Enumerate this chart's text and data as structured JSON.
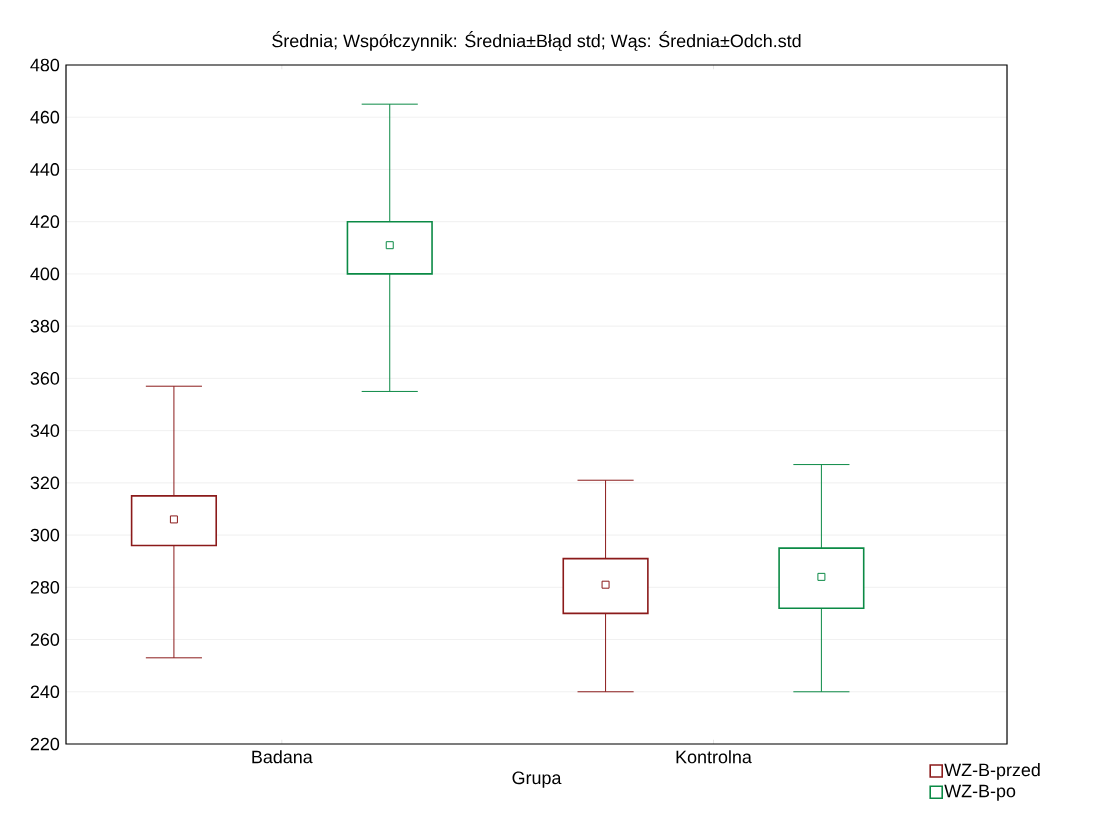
{
  "chart_data": {
    "type": "box",
    "title": "Średnia; Współczynnik: Średnia±Błąd std; Wąs: Średnia±Odch.std",
    "xlabel": "Grupa",
    "categories": [
      "Badana",
      "Kontrolna"
    ],
    "ylim": [
      220,
      480
    ],
    "yticks": [
      220,
      240,
      260,
      280,
      300,
      320,
      340,
      360,
      380,
      400,
      420,
      440,
      460,
      480
    ],
    "grid": "y",
    "legend": "bottom right",
    "marker": "square",
    "series": [
      {
        "name": "WZ-B-przed",
        "color": "#8b1a1a",
        "boxes": [
          {
            "low": 253,
            "q1": 296,
            "q3": 315,
            "high": 357,
            "mean": 306
          },
          {
            "low": 240,
            "q1": 270,
            "q3": 291,
            "high": 321,
            "mean": 281
          }
        ]
      },
      {
        "name": "WZ-B-po",
        "color": "#0b8a45",
        "boxes": [
          {
            "low": 355,
            "q1": 400,
            "q3": 420,
            "high": 465,
            "mean": 411
          },
          {
            "low": 240,
            "q1": 272,
            "q3": 295,
            "high": 327,
            "mean": 284
          }
        ]
      }
    ]
  }
}
